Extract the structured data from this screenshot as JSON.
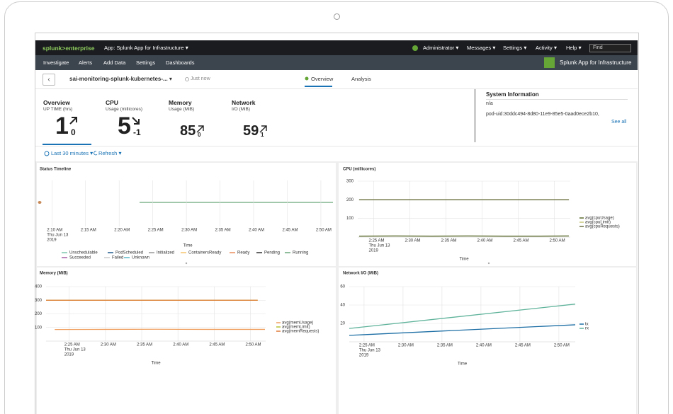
{
  "top_nav": {
    "logo": "splunk>enterprise",
    "app": "App: Splunk App for Infrastructure",
    "menus": [
      "Administrator",
      "Messages",
      "Settings",
      "Activity",
      "Help"
    ],
    "search_placeholder": "Find"
  },
  "app_nav": {
    "items": [
      "Investigate",
      "Alerts",
      "Add Data",
      "Settings",
      "Dashboards"
    ],
    "app_title": "Splunk App for Infrastructure"
  },
  "entity": {
    "name": "sai-monitoring-splunk-kubernetes-...",
    "updated": "Just now",
    "tabs": [
      "Overview",
      "Analysis"
    ]
  },
  "kpis": [
    {
      "title": "Overview",
      "subtitle": "UP TIME (hrs)",
      "value": 1,
      "trend": 0
    },
    {
      "title": "CPU",
      "subtitle": "Usage (millicores)",
      "value": 5,
      "trend": -1
    },
    {
      "title": "Memory",
      "subtitle": "Usage (MiB)",
      "value": 85,
      "trend": 0
    },
    {
      "title": "Network",
      "subtitle": "I/O (MiB)",
      "value": 59,
      "trend": 1
    }
  ],
  "system_info": {
    "title": "System Information",
    "status": "n/a",
    "pod_uid": "pod-uid:30ddc494-8d80-11e9-85e5-0aad0ece2b10,",
    "link": "See all"
  },
  "controls": {
    "time_range": "Last 30 minutes",
    "refresh": "Refresh"
  },
  "panels": [
    {
      "type": "timeline",
      "title": "Status Timeline",
      "xlabel": "Time",
      "xlim": [
        8.6,
        51.8
      ],
      "xticks": [
        {
          "value": 10,
          "label": "2:10 AM"
        },
        {
          "value": 15,
          "label": "2:15 AM"
        },
        {
          "value": 20,
          "label": "2:20 AM"
        },
        {
          "value": 25,
          "label": "2:25 AM"
        },
        {
          "value": 30,
          "label": "2:30 AM"
        },
        {
          "value": 35,
          "label": "2:35 AM"
        },
        {
          "value": 40,
          "label": "2:40 AM"
        },
        {
          "value": 45,
          "label": "2:45 AM"
        },
        {
          "value": 50,
          "label": "2:50 AM"
        }
      ],
      "date_label": [
        "Thu Jun 13",
        "2019"
      ],
      "legend": [
        {
          "name": "Unschedulable",
          "color": "#7ec5ad"
        },
        {
          "name": "PodScheduled",
          "color": "#1e5b8f"
        },
        {
          "name": "Initialized",
          "color": "#999999"
        },
        {
          "name": "ContainersReady",
          "color": "#f7c46c"
        },
        {
          "name": "Ready",
          "color": "#ec8e5d"
        },
        {
          "name": "Pending",
          "color": "#333333"
        },
        {
          "name": "Running",
          "color": "#6aa87b"
        },
        {
          "name": "Succeeded",
          "color": "#a55ca5"
        },
        {
          "name": "Failed",
          "color": "#cccccc"
        },
        {
          "name": "Unknown",
          "color": "#5bb7c9"
        }
      ]
    },
    {
      "type": "line",
      "title": "CPU (millicores)",
      "xlabel": "Time",
      "xlim": [
        22.8,
        52.2
      ],
      "ylim": [
        0,
        300
      ],
      "yticks": [
        100,
        200,
        300
      ],
      "xticks": [
        {
          "value": 25,
          "label": "2:25 AM"
        },
        {
          "value": 30,
          "label": "2:30 AM"
        },
        {
          "value": 35,
          "label": "2:35 AM"
        },
        {
          "value": 40,
          "label": "2:40 AM"
        },
        {
          "value": 45,
          "label": "2:45 AM"
        },
        {
          "value": 50,
          "label": "2:50 AM"
        }
      ],
      "date_label": [
        "Thu Jun 13",
        "2019"
      ],
      "series": [
        {
          "name": "avg(cpuUsage)",
          "color": "#5a6b2c",
          "x": [
            23,
            28,
            33,
            38,
            43,
            48,
            52
          ],
          "values": [
            5,
            6,
            5,
            6,
            5,
            5,
            6
          ]
        },
        {
          "name": "avg(cpuLimit)",
          "color": "#c8c87a",
          "x": [
            23,
            52
          ],
          "values": [
            200,
            200
          ]
        },
        {
          "name": "avg(cpuRequests)",
          "color": "#6b7040",
          "x": [
            23,
            52
          ],
          "values": [
            200,
            200
          ]
        }
      ]
    },
    {
      "type": "line",
      "title": "Memory (MiB)",
      "xlabel": "Time",
      "xlim": [
        21.8,
        52.1
      ],
      "ylim": [
        0,
        400
      ],
      "yticks": [
        100,
        200,
        300,
        400
      ],
      "xticks": [
        {
          "value": 25,
          "label": "2:25 AM"
        },
        {
          "value": 30,
          "label": "2:30 AM"
        },
        {
          "value": 35,
          "label": "2:35 AM"
        },
        {
          "value": 40,
          "label": "2:40 AM"
        },
        {
          "value": 45,
          "label": "2:45 AM"
        },
        {
          "value": 50,
          "label": "2:50 AM"
        }
      ],
      "date_label": [
        "Thu Jun 13",
        "2019"
      ],
      "series": [
        {
          "name": "avg(memUsage)",
          "color": "#f0a060",
          "x": [
            23,
            30,
            37,
            44,
            52
          ],
          "values": [
            85,
            86,
            87,
            86,
            86
          ]
        },
        {
          "name": "avg(memLimit)",
          "color": "#b5c334",
          "x": [
            21.8,
            51
          ],
          "values": [
            300,
            300
          ]
        },
        {
          "name": "avg(memRequests)",
          "color": "#e07b39",
          "x": [
            21.8,
            51
          ],
          "values": [
            300,
            300
          ]
        }
      ]
    },
    {
      "type": "line",
      "title": "Network I/O (MiB)",
      "xlabel": "Time",
      "xlim": [
        23.1,
        52.1
      ],
      "ylim": [
        0,
        60
      ],
      "yticks": [
        20,
        40,
        60
      ],
      "xticks": [
        {
          "value": 25,
          "label": "2:25 AM"
        },
        {
          "value": 30,
          "label": "2:30 AM"
        },
        {
          "value": 35,
          "label": "2:35 AM"
        },
        {
          "value": 40,
          "label": "2:40 AM"
        },
        {
          "value": 45,
          "label": "2:45 AM"
        },
        {
          "value": 50,
          "label": "2:50 AM"
        }
      ],
      "date_label": [
        "Thu Jun 13",
        "2019"
      ],
      "series": [
        {
          "name": "tx",
          "color": "#1e6fa5",
          "x": [
            23.1,
            52.1
          ],
          "values": [
            7,
            18.5
          ]
        },
        {
          "name": "rx",
          "color": "#5fb39a",
          "x": [
            23.1,
            52.1
          ],
          "values": [
            14.5,
            41
          ]
        }
      ]
    }
  ]
}
